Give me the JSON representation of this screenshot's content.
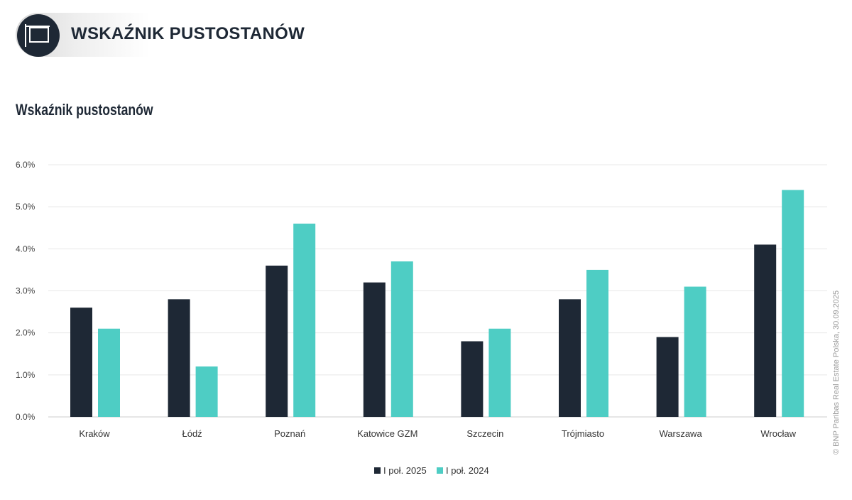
{
  "header": {
    "title": "WSKAŹNIK PUSTOSTANÓW",
    "icon": "signboard-icon"
  },
  "credit": "© BNP Paribas Real Estate Polska, 30.09.2025",
  "chart_data": {
    "type": "bar",
    "title": "Wskaźnik pustostanów",
    "categories": [
      "Kraków",
      "Łódź",
      "Poznań",
      "Katowice GZM",
      "Szczecin",
      "Trójmiasto",
      "Warszawa",
      "Wrocław"
    ],
    "series": [
      {
        "name": "I poł. 2025",
        "color": "#1e2835",
        "values": [
          2.6,
          2.8,
          3.6,
          3.2,
          1.8,
          2.8,
          1.9,
          4.1
        ]
      },
      {
        "name": "I poł. 2024",
        "color": "#4ecdc4",
        "values": [
          2.1,
          1.2,
          4.6,
          3.7,
          2.1,
          3.5,
          3.1,
          5.4
        ]
      }
    ],
    "yticks": [
      "0.0%",
      "1.0%",
      "2.0%",
      "3.0%",
      "4.0%",
      "5.0%",
      "6.0%"
    ],
    "ylim": [
      0,
      6
    ],
    "grid": true,
    "legend": "bottom"
  }
}
